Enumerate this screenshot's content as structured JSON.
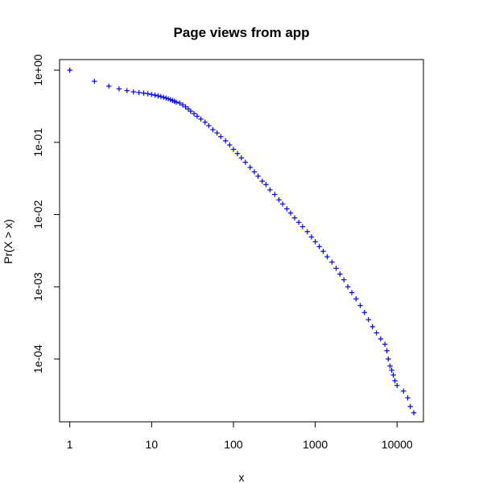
{
  "chart_data": {
    "type": "scatter",
    "title": "Page views from app",
    "xlabel": "x",
    "ylabel": "Pr(X > x)",
    "x_scale": "log",
    "y_scale": "log",
    "xlim": [
      0.75,
      21000
    ],
    "ylim": [
      1.35e-05,
      1.4
    ],
    "x_ticks": [
      {
        "value": 1,
        "label": "1"
      },
      {
        "value": 10,
        "label": "10"
      },
      {
        "value": 100,
        "label": "100"
      },
      {
        "value": 1000,
        "label": "1000"
      },
      {
        "value": 10000,
        "label": "10000"
      }
    ],
    "y_ticks": [
      {
        "value": 1,
        "label": "1e+00"
      },
      {
        "value": 0.1,
        "label": "1e-01"
      },
      {
        "value": 0.01,
        "label": "1e-02"
      },
      {
        "value": 0.001,
        "label": "1e-03"
      },
      {
        "value": 0.0001,
        "label": "1e-04"
      }
    ],
    "marker": "plus",
    "color": "#0000ff",
    "grid": false,
    "series": [
      {
        "points": [
          [
            1,
            1.0
          ],
          [
            2,
            0.7
          ],
          [
            3,
            0.6
          ],
          [
            4,
            0.55
          ],
          [
            5,
            0.52
          ],
          [
            6,
            0.5
          ],
          [
            7,
            0.49
          ],
          [
            8,
            0.48
          ],
          [
            9,
            0.47
          ],
          [
            10,
            0.46
          ],
          [
            11,
            0.45
          ],
          [
            12,
            0.44
          ],
          [
            13,
            0.43
          ],
          [
            14,
            0.42
          ],
          [
            15,
            0.41
          ],
          [
            16,
            0.4
          ],
          [
            17,
            0.39
          ],
          [
            18,
            0.38
          ],
          [
            19,
            0.37
          ],
          [
            20,
            0.36
          ],
          [
            22,
            0.35
          ],
          [
            24,
            0.33
          ],
          [
            26,
            0.31
          ],
          [
            28,
            0.29
          ],
          [
            30,
            0.27
          ],
          [
            33,
            0.25
          ],
          [
            36,
            0.23
          ],
          [
            40,
            0.21
          ],
          [
            45,
            0.19
          ],
          [
            50,
            0.17
          ],
          [
            56,
            0.15
          ],
          [
            63,
            0.135
          ],
          [
            70,
            0.12
          ],
          [
            80,
            0.105
          ],
          [
            90,
            0.092
          ],
          [
            100,
            0.08
          ],
          [
            112,
            0.07
          ],
          [
            125,
            0.061
          ],
          [
            140,
            0.053
          ],
          [
            160,
            0.045
          ],
          [
            180,
            0.039
          ],
          [
            200,
            0.034
          ],
          [
            225,
            0.029
          ],
          [
            250,
            0.026
          ],
          [
            280,
            0.022
          ],
          [
            320,
            0.019
          ],
          [
            360,
            0.016
          ],
          [
            400,
            0.014
          ],
          [
            450,
            0.012
          ],
          [
            500,
            0.0105
          ],
          [
            560,
            0.009
          ],
          [
            630,
            0.0078
          ],
          [
            700,
            0.0068
          ],
          [
            800,
            0.0058
          ],
          [
            900,
            0.0049
          ],
          [
            1000,
            0.0042
          ],
          [
            1120,
            0.0036
          ],
          [
            1250,
            0.0031
          ],
          [
            1400,
            0.0026
          ],
          [
            1600,
            0.0022
          ],
          [
            1800,
            0.0018
          ],
          [
            2000,
            0.0015
          ],
          [
            2240,
            0.00125
          ],
          [
            2500,
            0.001
          ],
          [
            2800,
            0.00083
          ],
          [
            3150,
            0.00068
          ],
          [
            3550,
            0.00055
          ],
          [
            4000,
            0.00044
          ],
          [
            4470,
            0.00035
          ],
          [
            5000,
            0.00028
          ],
          [
            5600,
            0.00023
          ],
          [
            6300,
            0.00019
          ],
          [
            7100,
            0.00016
          ],
          [
            7500,
            0.00013
          ],
          [
            7800,
            0.0001
          ],
          [
            8200,
            8e-05
          ],
          [
            8600,
            7e-05
          ],
          [
            9000,
            6e-05
          ],
          [
            9400,
            5e-05
          ],
          [
            10000,
            4.3e-05
          ],
          [
            12000,
            3.6e-05
          ],
          [
            13500,
            2.9e-05
          ],
          [
            14500,
            2.2e-05
          ],
          [
            16000,
            1.8e-05
          ]
        ]
      }
    ]
  }
}
